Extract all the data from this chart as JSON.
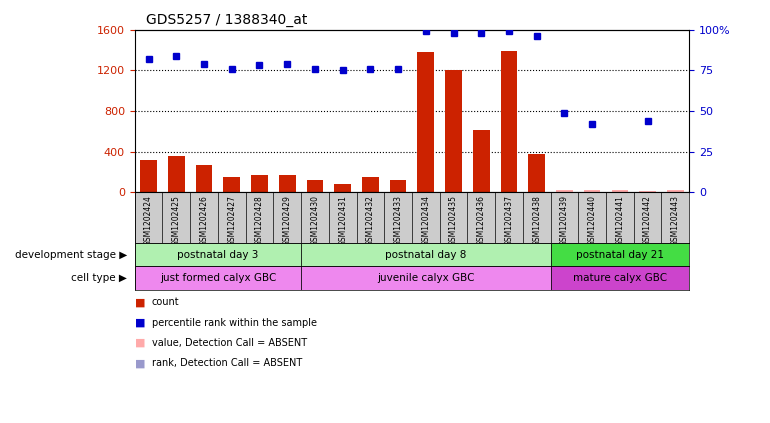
{
  "title": "GDS5257 / 1388340_at",
  "samples": [
    "GSM1202424",
    "GSM1202425",
    "GSM1202426",
    "GSM1202427",
    "GSM1202428",
    "GSM1202429",
    "GSM1202430",
    "GSM1202431",
    "GSM1202432",
    "GSM1202433",
    "GSM1202434",
    "GSM1202435",
    "GSM1202436",
    "GSM1202437",
    "GSM1202438",
    "GSM1202439",
    "GSM1202440",
    "GSM1202441",
    "GSM1202442",
    "GSM1202443"
  ],
  "counts": [
    320,
    355,
    265,
    155,
    175,
    175,
    120,
    85,
    150,
    125,
    1380,
    1200,
    610,
    1390,
    380,
    20,
    20,
    20,
    15,
    20
  ],
  "counts_absent": [
    false,
    false,
    false,
    false,
    false,
    false,
    false,
    false,
    false,
    false,
    false,
    false,
    false,
    false,
    false,
    true,
    true,
    true,
    true,
    true
  ],
  "percentile_ranks": [
    82,
    84,
    79,
    76,
    78,
    79,
    76,
    75,
    76,
    76,
    99,
    98,
    98,
    99,
    96,
    49,
    42,
    null,
    44,
    null
  ],
  "percentile_ranks_absent": [
    false,
    false,
    false,
    false,
    false,
    false,
    false,
    false,
    false,
    false,
    false,
    false,
    false,
    false,
    false,
    false,
    false,
    true,
    false,
    true
  ],
  "ylim_left": [
    0,
    1600
  ],
  "ylim_right": [
    0,
    100
  ],
  "yticks_left": [
    0,
    400,
    800,
    1200,
    1600
  ],
  "yticks_right": [
    0,
    25,
    50,
    75,
    100
  ],
  "dev_groups": [
    {
      "label": "postnatal day 3",
      "start": 0,
      "end": 6,
      "color": "#b0f0b0"
    },
    {
      "label": "postnatal day 8",
      "start": 6,
      "end": 15,
      "color": "#b0f0b0"
    },
    {
      "label": "postnatal day 21",
      "start": 15,
      "end": 20,
      "color": "#44dd44"
    }
  ],
  "cell_groups": [
    {
      "label": "just formed calyx GBC",
      "start": 0,
      "end": 6,
      "color": "#ee88ee"
    },
    {
      "label": "juvenile calyx GBC",
      "start": 6,
      "end": 15,
      "color": "#ee88ee"
    },
    {
      "label": "mature calyx GBC",
      "start": 15,
      "end": 20,
      "color": "#cc44cc"
    }
  ],
  "bar_color_present": "#cc2200",
  "bar_color_absent": "#ffaaaa",
  "dot_color_present": "#0000cc",
  "dot_color_absent": "#9999cc",
  "xtick_band_color": "#cccccc",
  "legend_items": [
    {
      "color": "#cc2200",
      "label": "count"
    },
    {
      "color": "#0000cc",
      "label": "percentile rank within the sample"
    },
    {
      "color": "#ffaaaa",
      "label": "value, Detection Call = ABSENT"
    },
    {
      "color": "#9999cc",
      "label": "rank, Detection Call = ABSENT"
    }
  ]
}
